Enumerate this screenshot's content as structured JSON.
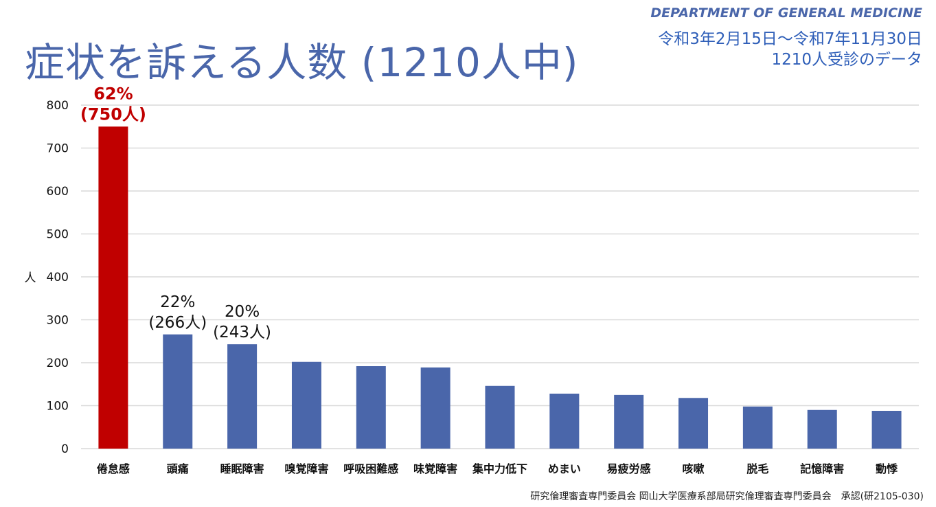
{
  "header": {
    "title": "症状を訴える人数 (1210人中)",
    "department": "DEPARTMENT OF GENERAL MEDICINE",
    "period": "令和3年2月15日～令和7年11月30日",
    "subtitle": "1210人受診のデータ"
  },
  "footer": "研究倫理審査専門委員会 岡山大学医療系部局研究倫理審査専門委員会　承認(研2105-030)",
  "chart_data": {
    "type": "bar",
    "title": "症状を訴える人数 (1210人中)",
    "ylabel": "人",
    "xlabel": "",
    "ylim": [
      0,
      800
    ],
    "yticks": [
      0,
      100,
      200,
      300,
      400,
      500,
      600,
      700,
      800
    ],
    "grid": true,
    "categories": [
      "倦怠感",
      "頭痛",
      "睡眠障害",
      "嗅覚障害",
      "呼吸困難感",
      "味覚障害",
      "集中力低下",
      "めまい",
      "易疲労感",
      "咳嗽",
      "脱毛",
      "記憶障害",
      "動悸"
    ],
    "values": [
      750,
      266,
      243,
      202,
      192,
      189,
      146,
      128,
      125,
      118,
      98,
      90,
      88
    ],
    "colors": {
      "highlight": "#c00000",
      "default": "#4a66aa",
      "grid": "#d9d9d9"
    },
    "annotations": [
      {
        "index": 0,
        "lines": [
          "62%",
          "(750人)"
        ],
        "color": "#c00000",
        "bold": true
      },
      {
        "index": 1,
        "lines": [
          "22%",
          "(266人)"
        ],
        "color": "#111111",
        "bold": false
      },
      {
        "index": 2,
        "lines": [
          "20%",
          "(243人)"
        ],
        "color": "#111111",
        "bold": false
      }
    ]
  }
}
